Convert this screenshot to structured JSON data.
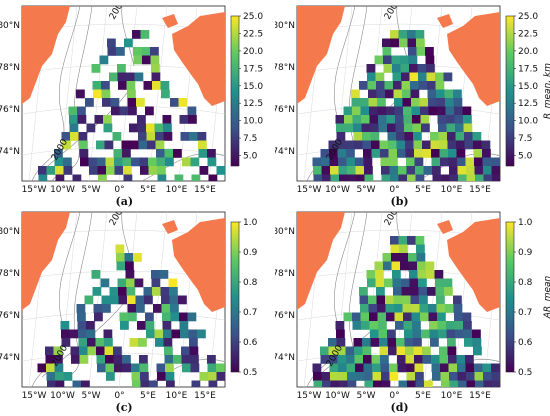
{
  "panels": [
    {
      "label": "(a)",
      "colorbar_ticks": [
        "25.0",
        "22.5",
        "20.0",
        "17.5",
        "15.0",
        "12.5",
        "10.0",
        "7.5",
        "5.0"
      ],
      "vmin": 3.5,
      "vmax": 25,
      "colorbar_title": "",
      "density": 0.55,
      "seed": 11
    },
    {
      "label": "(b)",
      "colorbar_ticks": [
        "25.0",
        "22.5",
        "20.0",
        "17.5",
        "15.0",
        "12.5",
        "10.0",
        "7.5",
        "5.0"
      ],
      "vmin": 3.5,
      "vmax": 25,
      "colorbar_title": "R_mean, km",
      "density": 0.85,
      "seed": 23
    },
    {
      "label": "(c)",
      "colorbar_ticks": [
        "1.0",
        "0.9",
        "0.8",
        "0.7",
        "0.6",
        "0.5"
      ],
      "vmin": 0.5,
      "vmax": 1.0,
      "colorbar_title": "",
      "density": 0.6,
      "seed": 37
    },
    {
      "label": "(d)",
      "colorbar_ticks": [
        "1.0",
        "0.9",
        "0.8",
        "0.7",
        "0.6",
        "0.5"
      ],
      "vmin": 0.5,
      "vmax": 1.0,
      "colorbar_title": "AR_mean",
      "density": 0.85,
      "seed": 51
    }
  ],
  "lat_labels": [
    "80°N",
    "78°N",
    "76°N",
    "74°N"
  ],
  "lon_labels": [
    "15°W",
    "10°W",
    "5°W",
    "0°",
    "5°E",
    "10°E",
    "15°E"
  ],
  "contour_labels": [
    "2000",
    "2000"
  ],
  "colors": {
    "land": "#f47a4e",
    "contour": "#8a8a8a",
    "grid": "#d9d9d9",
    "cmap": [
      "#440154",
      "#3b528b",
      "#21918c",
      "#5ec962",
      "#fde725"
    ]
  }
}
